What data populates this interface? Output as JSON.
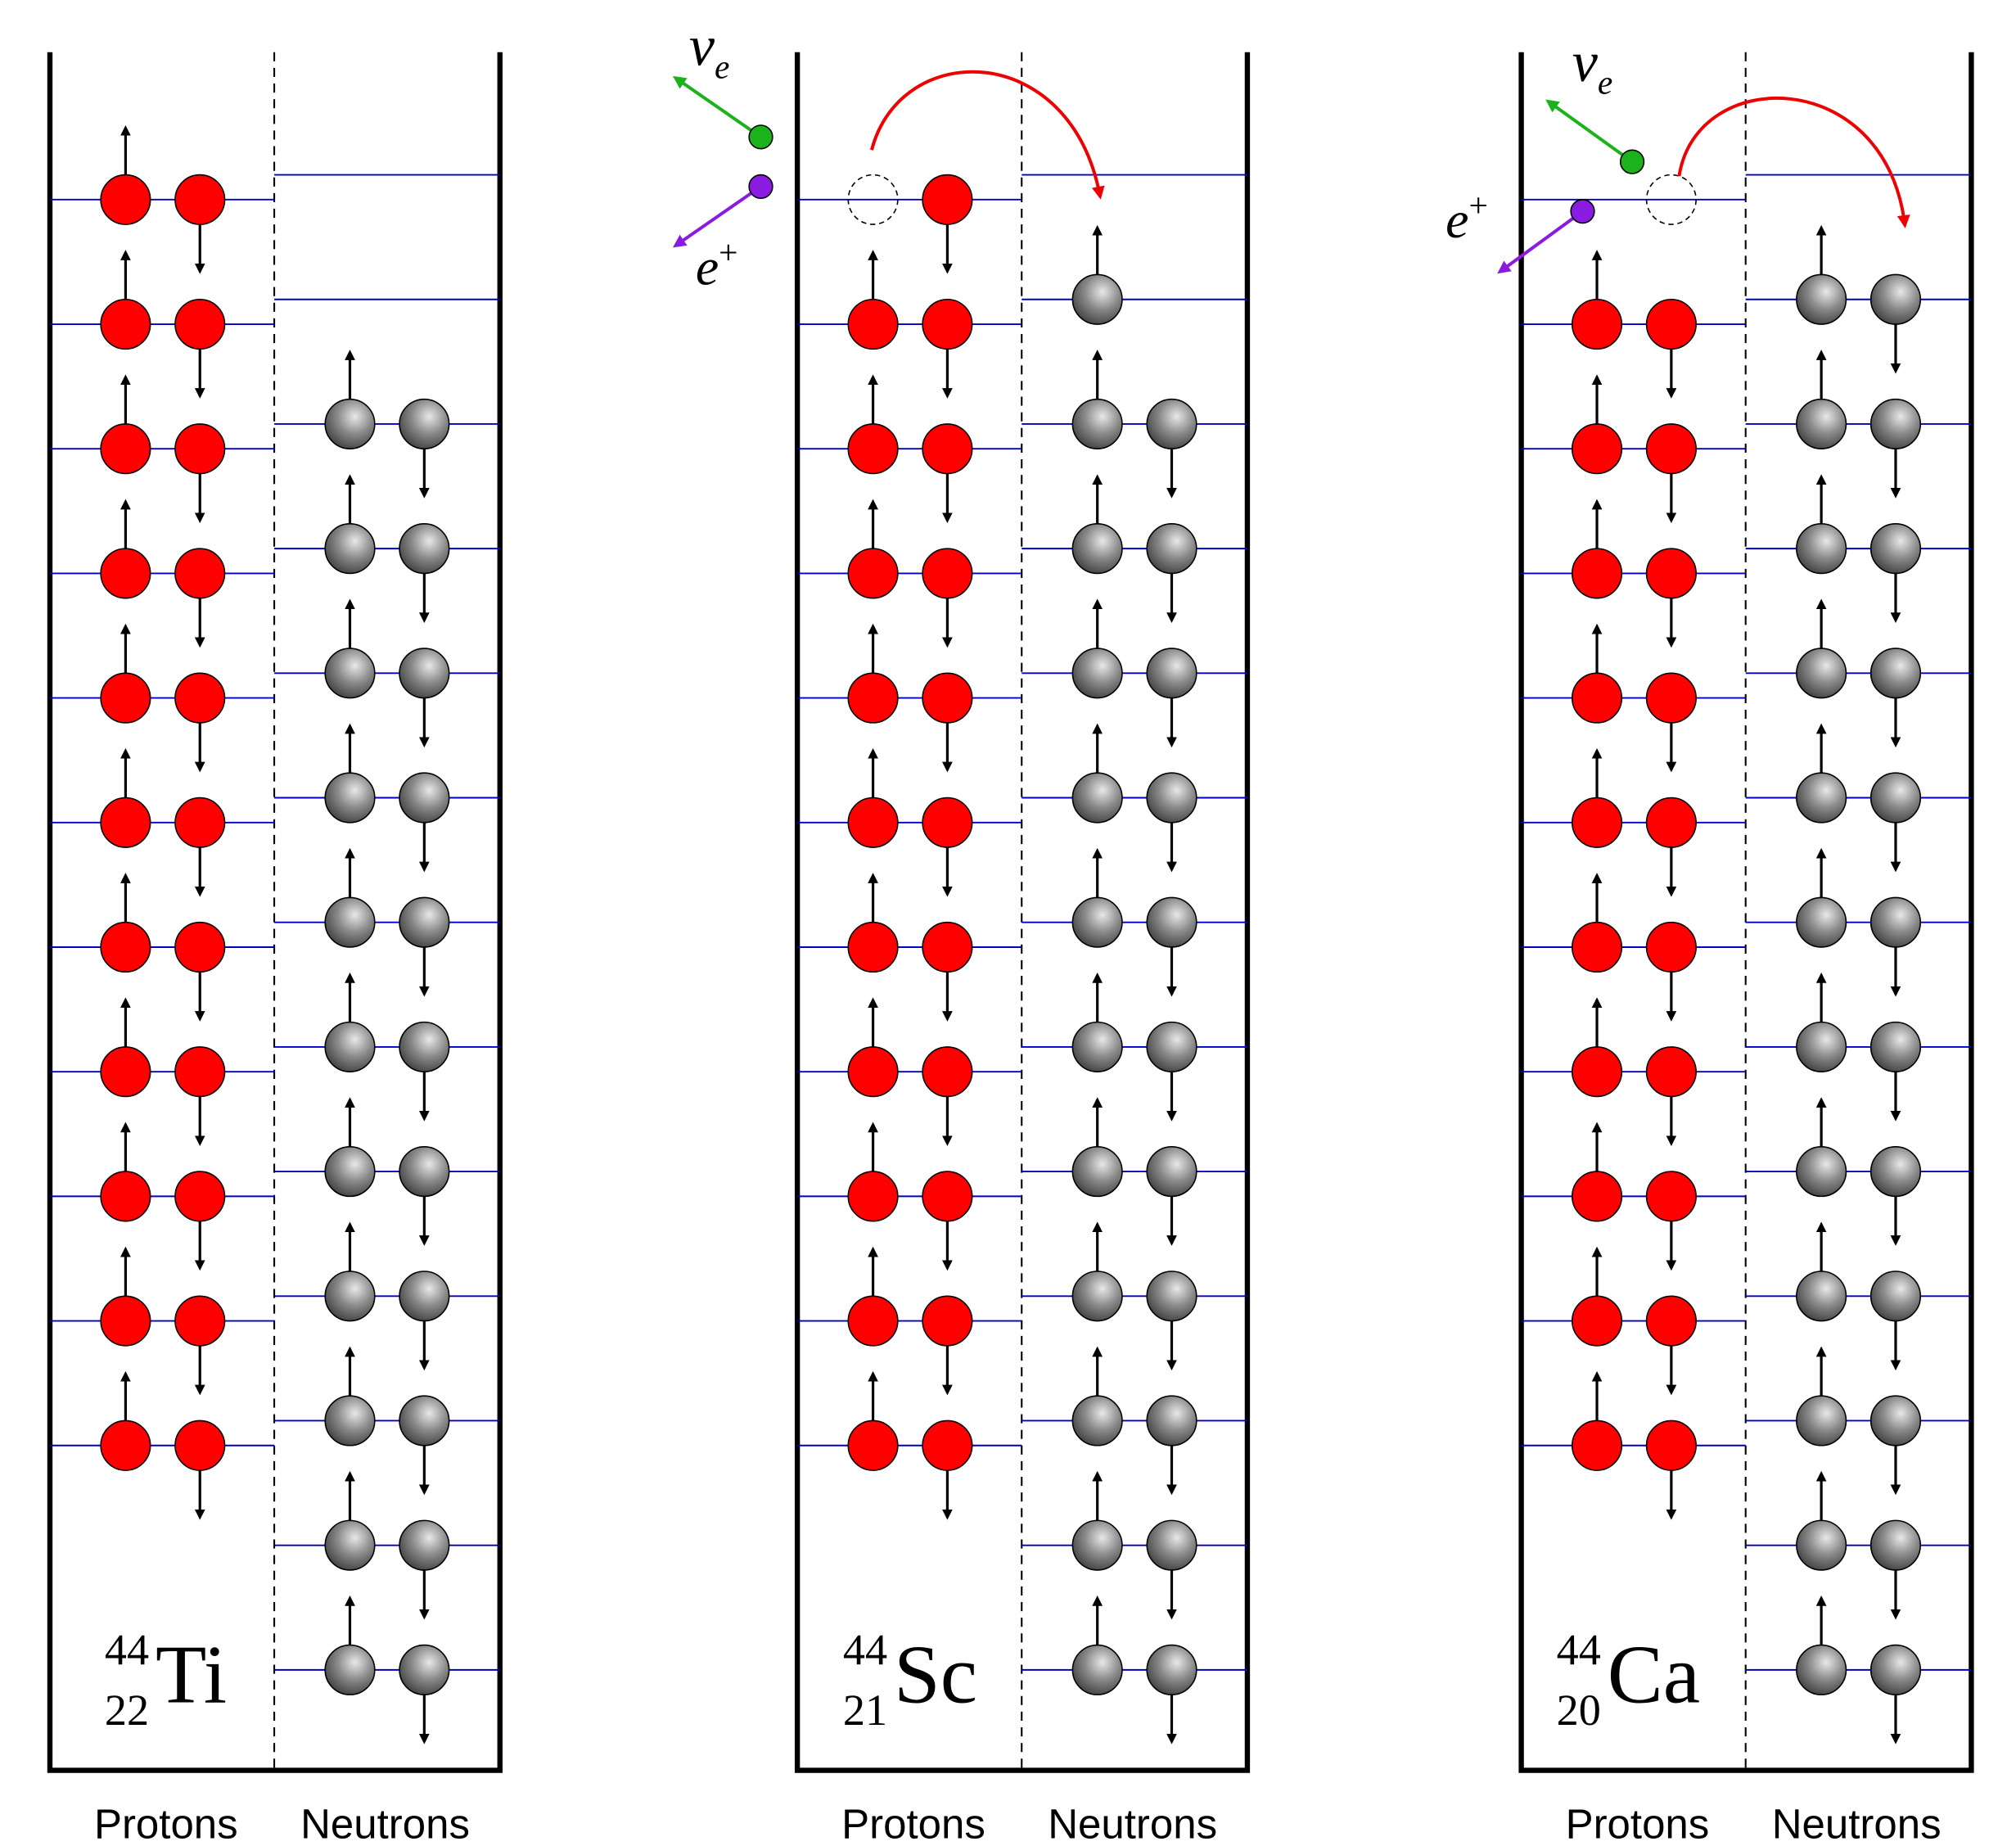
{
  "panels": [
    {
      "isotope": {
        "mass": "44",
        "atomic_number": "22",
        "symbol": "Ti"
      },
      "protons_label": "Protons",
      "neutrons_label": "Neutrons"
    },
    {
      "isotope": {
        "mass": "44",
        "atomic_number": "21",
        "symbol": "Sc"
      },
      "protons_label": "Protons",
      "neutrons_label": "Neutrons",
      "neutrino": {
        "symbol": "ν",
        "subscript": "e"
      },
      "positron": {
        "symbol": "e",
        "superscript": "+"
      }
    },
    {
      "isotope": {
        "mass": "44",
        "atomic_number": "20",
        "symbol": "Ca"
      },
      "protons_label": "Protons",
      "neutrons_label": "Neutrons",
      "neutrino": {
        "symbol": "ν",
        "subscript": "e"
      },
      "positron": {
        "symbol": "e",
        "superscript": "+"
      }
    }
  ]
}
